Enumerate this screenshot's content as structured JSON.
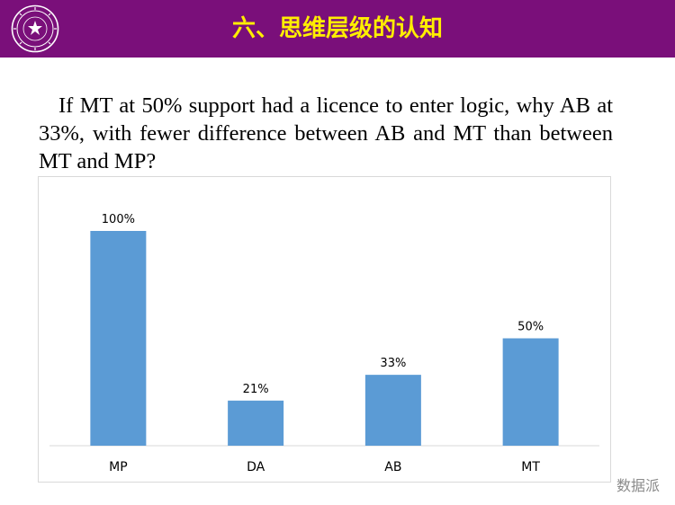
{
  "slide": {
    "title": "六、思维层级的认知",
    "question": "If MT at 50% support had a licence to enter logic, why AB at 33%, with fewer difference between AB and MT than between MT and MP?",
    "watermark": "数据派",
    "header_color": "#7a0f7a",
    "title_color": "#ffee00",
    "logo_icon": "university-seal-icon"
  },
  "chart_data": {
    "type": "bar",
    "categories": [
      "MP",
      "DA",
      "AB",
      "MT"
    ],
    "values": [
      100,
      21,
      33,
      50
    ],
    "value_labels": [
      "100%",
      "21%",
      "33%",
      "50%"
    ],
    "title": "",
    "xlabel": "",
    "ylabel": "",
    "ylim": [
      0,
      100
    ],
    "grid": false,
    "legend": "none",
    "bar_color": "#5b9bd5"
  }
}
